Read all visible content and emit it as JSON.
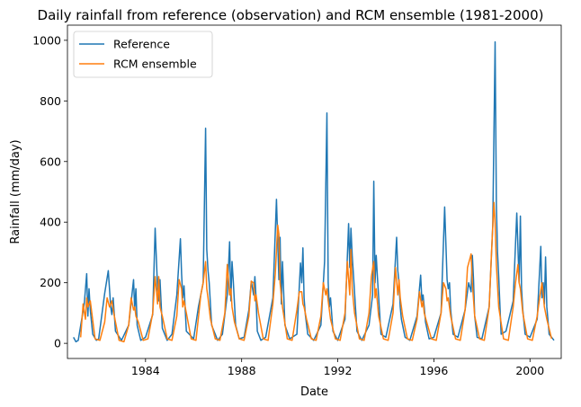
{
  "chart_data": {
    "type": "line",
    "title": "Daily rainfall from reference (observation) and RCM ensemble (1981-2000)",
    "xlabel": "Date",
    "ylabel": "Rainfall (mm/day)",
    "xlim": [
      1980.75,
      2001.3
    ],
    "ylim": [
      -50,
      1050
    ],
    "x_ticks": [
      1984,
      1988,
      1992,
      1996,
      2000
    ],
    "x_tick_labels": [
      "1984",
      "1988",
      "1992",
      "1996",
      "2000"
    ],
    "y_ticks": [
      0,
      200,
      400,
      600,
      800,
      1000
    ],
    "y_tick_labels": [
      "0",
      "200",
      "400",
      "600",
      "800",
      "1000"
    ],
    "grid": false,
    "legend_position": "top-left",
    "series": [
      {
        "name": "Reference",
        "color": "#1f77b4",
        "x": [
          1981.0,
          1981.1,
          1981.2,
          1981.45,
          1981.55,
          1981.6,
          1981.65,
          1981.7,
          1981.8,
          1981.95,
          1982.05,
          1982.3,
          1982.45,
          1982.55,
          1982.6,
          1982.65,
          1982.75,
          1983.0,
          1983.3,
          1983.5,
          1983.55,
          1983.6,
          1983.65,
          1983.8,
          1984.0,
          1984.3,
          1984.4,
          1984.5,
          1984.55,
          1984.6,
          1984.7,
          1984.9,
          1985.1,
          1985.3,
          1985.45,
          1985.5,
          1985.55,
          1985.6,
          1985.7,
          1986.0,
          1986.2,
          1986.4,
          1986.5,
          1986.55,
          1986.6,
          1986.65,
          1986.75,
          1987.0,
          1987.2,
          1987.4,
          1987.5,
          1987.55,
          1987.6,
          1987.65,
          1987.75,
          1987.9,
          1988.1,
          1988.3,
          1988.4,
          1988.5,
          1988.55,
          1988.6,
          1988.65,
          1988.8,
          1989.0,
          1989.3,
          1989.45,
          1989.55,
          1989.6,
          1989.65,
          1989.7,
          1989.8,
          1990.0,
          1990.3,
          1990.45,
          1990.5,
          1990.55,
          1990.6,
          1990.65,
          1990.75,
          1991.0,
          1991.3,
          1991.45,
          1991.55,
          1991.6,
          1991.65,
          1991.7,
          1991.8,
          1992.0,
          1992.3,
          1992.45,
          1992.5,
          1992.55,
          1992.6,
          1992.65,
          1992.8,
          1993.0,
          1993.3,
          1993.45,
          1993.5,
          1993.55,
          1993.6,
          1993.65,
          1993.8,
          1994.0,
          1994.3,
          1994.45,
          1994.5,
          1994.55,
          1994.6,
          1994.65,
          1994.8,
          1995.0,
          1995.3,
          1995.45,
          1995.5,
          1995.55,
          1995.6,
          1995.65,
          1995.8,
          1996.0,
          1996.3,
          1996.45,
          1996.55,
          1996.6,
          1996.65,
          1996.7,
          1996.8,
          1997.0,
          1997.3,
          1997.45,
          1997.55,
          1997.6,
          1997.65,
          1997.7,
          1997.8,
          1998.0,
          1998.3,
          1998.45,
          1998.55,
          1998.6,
          1998.65,
          1998.7,
          1998.8,
          1999.0,
          1999.3,
          1999.45,
          1999.55,
          1999.6,
          1999.65,
          1999.7,
          1999.8,
          2000.0,
          2000.3,
          2000.45,
          2000.5,
          2000.55,
          2000.6,
          2000.65,
          2000.7,
          2000.8,
          2001.0
        ],
        "y": [
          20,
          5,
          10,
          130,
          230,
          90,
          180,
          110,
          30,
          10,
          15,
          165,
          240,
          120,
          95,
          150,
          40,
          10,
          60,
          210,
          110,
          180,
          60,
          10,
          20,
          95,
          380,
          180,
          140,
          210,
          50,
          10,
          30,
          160,
          345,
          230,
          150,
          190,
          40,
          15,
          120,
          200,
          710,
          310,
          240,
          200,
          60,
          10,
          30,
          160,
          335,
          140,
          270,
          210,
          60,
          15,
          20,
          110,
          205,
          160,
          220,
          150,
          40,
          10,
          20,
          150,
          475,
          210,
          350,
          130,
          270,
          60,
          15,
          30,
          265,
          200,
          315,
          150,
          95,
          30,
          10,
          60,
          270,
          760,
          200,
          120,
          150,
          40,
          10,
          80,
          395,
          250,
          380,
          290,
          230,
          40,
          10,
          60,
          160,
          535,
          200,
          290,
          220,
          30,
          20,
          130,
          350,
          240,
          200,
          120,
          80,
          20,
          10,
          90,
          225,
          140,
          160,
          120,
          70,
          15,
          20,
          100,
          450,
          210,
          180,
          200,
          110,
          30,
          20,
          110,
          200,
          170,
          290,
          210,
          90,
          20,
          15,
          120,
          390,
          995,
          460,
          300,
          220,
          30,
          40,
          140,
          430,
          200,
          420,
          180,
          110,
          30,
          20,
          80,
          320,
          150,
          200,
          130,
          285,
          120,
          30,
          10
        ]
      },
      {
        "name": "RCM ensemble",
        "color": "#ff7f0e",
        "x": [
          1981.3,
          1981.4,
          1981.5,
          1981.55,
          1981.6,
          1981.7,
          1981.9,
          1982.1,
          1982.3,
          1982.4,
          1982.5,
          1982.55,
          1982.6,
          1982.7,
          1982.9,
          1983.1,
          1983.3,
          1983.4,
          1983.5,
          1983.55,
          1983.6,
          1983.7,
          1983.9,
          1984.1,
          1984.3,
          1984.4,
          1984.5,
          1984.55,
          1984.6,
          1984.7,
          1984.9,
          1985.1,
          1985.3,
          1985.4,
          1985.5,
          1985.55,
          1985.6,
          1985.7,
          1985.9,
          1986.1,
          1986.3,
          1986.4,
          1986.5,
          1986.55,
          1986.6,
          1986.7,
          1986.9,
          1987.1,
          1987.3,
          1987.4,
          1987.5,
          1987.55,
          1987.6,
          1987.7,
          1987.9,
          1988.1,
          1988.3,
          1988.4,
          1988.5,
          1988.55,
          1988.6,
          1988.7,
          1988.9,
          1989.1,
          1989.3,
          1989.4,
          1989.5,
          1989.55,
          1989.6,
          1989.7,
          1989.9,
          1990.1,
          1990.3,
          1990.4,
          1990.5,
          1990.55,
          1990.6,
          1990.7,
          1990.9,
          1991.1,
          1991.3,
          1991.4,
          1991.5,
          1991.55,
          1991.6,
          1991.7,
          1991.9,
          1992.1,
          1992.3,
          1992.4,
          1992.5,
          1992.55,
          1992.6,
          1992.7,
          1992.9,
          1993.1,
          1993.3,
          1993.4,
          1993.5,
          1993.55,
          1993.6,
          1993.7,
          1993.9,
          1994.1,
          1994.3,
          1994.4,
          1994.5,
          1994.55,
          1994.6,
          1994.7,
          1994.9,
          1995.1,
          1995.3,
          1995.4,
          1995.5,
          1995.55,
          1995.6,
          1995.7,
          1995.9,
          1996.1,
          1996.3,
          1996.4,
          1996.5,
          1996.55,
          1996.6,
          1996.7,
          1996.9,
          1997.1,
          1997.3,
          1997.4,
          1997.5,
          1997.55,
          1997.6,
          1997.7,
          1997.9,
          1998.1,
          1998.3,
          1998.4,
          1998.5,
          1998.55,
          1998.6,
          1998.7,
          1998.9,
          1999.1,
          1999.3,
          1999.4,
          1999.5,
          1999.55,
          1999.6,
          1999.7,
          1999.9,
          2000.1,
          2000.3,
          2000.4,
          2000.5,
          2000.55,
          2000.6,
          2000.7,
          2000.9
        ],
        "y": [
          20,
          130,
          80,
          150,
          120,
          140,
          15,
          10,
          70,
          150,
          120,
          130,
          140,
          90,
          10,
          5,
          60,
          150,
          110,
          120,
          90,
          70,
          10,
          15,
          100,
          220,
          130,
          220,
          120,
          90,
          15,
          10,
          90,
          210,
          180,
          120,
          140,
          100,
          15,
          10,
          160,
          200,
          270,
          180,
          150,
          80,
          15,
          10,
          100,
          260,
          160,
          180,
          120,
          70,
          15,
          10,
          90,
          205,
          200,
          140,
          160,
          100,
          15,
          10,
          130,
          230,
          390,
          360,
          200,
          120,
          15,
          10,
          110,
          170,
          170,
          130,
          120,
          80,
          15,
          10,
          90,
          200,
          160,
          180,
          140,
          80,
          15,
          10,
          100,
          270,
          160,
          310,
          180,
          100,
          15,
          10,
          100,
          220,
          270,
          150,
          180,
          90,
          15,
          10,
          100,
          250,
          160,
          210,
          150,
          90,
          15,
          10,
          80,
          170,
          120,
          140,
          100,
          70,
          15,
          10,
          100,
          200,
          180,
          140,
          150,
          90,
          15,
          10,
          110,
          250,
          280,
          295,
          200,
          90,
          15,
          10,
          120,
          300,
          465,
          395,
          260,
          120,
          15,
          10,
          120,
          200,
          260,
          200,
          180,
          100,
          15,
          10,
          90,
          150,
          200,
          160,
          120,
          80,
          15
        ]
      }
    ]
  }
}
